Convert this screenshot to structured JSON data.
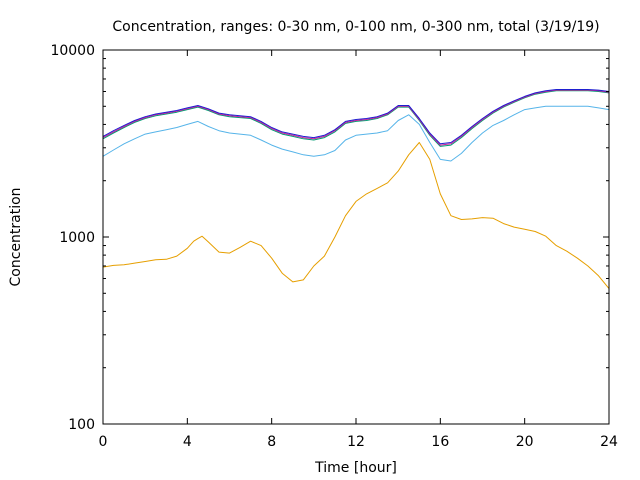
{
  "chart_data": {
    "type": "line",
    "title": "Concentration, ranges: 0-30 nm, 0-100 nm, 0-300 nm, total (3/19/19)",
    "xlabel": "Time [hour]",
    "ylabel": "Concentration",
    "xlim": [
      0,
      24
    ],
    "ylim": [
      100,
      10000
    ],
    "yscale": "log",
    "grid": false,
    "x_ticks": [
      0,
      4,
      8,
      12,
      16,
      20,
      24
    ],
    "x_tick_labels": [
      "0",
      "4",
      "8",
      "12",
      "16",
      "20",
      "24"
    ],
    "y_ticks": [
      100,
      1000,
      10000
    ],
    "y_tick_labels": [
      "100",
      "1000",
      "10000"
    ],
    "series": [
      {
        "color": "#e69f00",
        "x": [
          0,
          0.5,
          1,
          1.5,
          2,
          2.5,
          3,
          3.5,
          4,
          4.3,
          4.5,
          4.7,
          5,
          5.5,
          6,
          6.5,
          7,
          7.5,
          8,
          8.5,
          9,
          9.5,
          10,
          10.5,
          11,
          11.5,
          12,
          12.5,
          13,
          13.5,
          14,
          14.5,
          15,
          15.5,
          16,
          16.5,
          17,
          17.5,
          18,
          18.5,
          19,
          19.5,
          20,
          20.5,
          21,
          21.5,
          22,
          22.5,
          23,
          23.5,
          24
        ],
        "values": [
          690,
          705,
          710,
          725,
          740,
          755,
          760,
          790,
          870,
          950,
          980,
          1010,
          940,
          830,
          820,
          880,
          950,
          900,
          770,
          640,
          575,
          590,
          700,
          790,
          1000,
          1300,
          1550,
          1700,
          1820,
          1950,
          2250,
          2750,
          3200,
          2600,
          1700,
          1300,
          1240,
          1250,
          1270,
          1260,
          1180,
          1130,
          1100,
          1070,
          1010,
          900,
          840,
          770,
          700,
          620,
          530
        ]
      },
      {
        "color": "#56b4e9",
        "x": [
          0,
          0.5,
          1,
          1.5,
          2,
          2.5,
          3,
          3.5,
          4,
          4.5,
          5,
          5.5,
          6,
          6.5,
          7,
          7.5,
          8,
          8.5,
          9,
          9.5,
          10,
          10.5,
          11,
          11.5,
          12,
          12.5,
          13,
          13.5,
          14,
          14.5,
          15,
          15.5,
          16,
          16.5,
          17,
          17.5,
          18,
          18.5,
          19,
          19.5,
          20,
          20.5,
          21,
          21.5,
          22,
          22.5,
          23,
          23.5,
          24
        ],
        "values": [
          2700,
          2920,
          3150,
          3350,
          3550,
          3650,
          3750,
          3850,
          4000,
          4150,
          3900,
          3700,
          3600,
          3550,
          3500,
          3300,
          3100,
          2950,
          2850,
          2750,
          2700,
          2750,
          2900,
          3300,
          3500,
          3550,
          3600,
          3700,
          4200,
          4500,
          4000,
          3200,
          2600,
          2550,
          2800,
          3200,
          3600,
          3950,
          4200,
          4500,
          4800,
          4900,
          5000,
          5000,
          5000,
          5000,
          5000,
          4900,
          4800
        ]
      },
      {
        "color": "#009e73",
        "x": [
          0,
          0.5,
          1,
          1.5,
          2,
          2.5,
          3,
          3.5,
          4,
          4.5,
          5,
          5.5,
          6,
          6.5,
          7,
          7.5,
          8,
          8.5,
          9,
          9.5,
          10,
          10.5,
          11,
          11.5,
          12,
          12.5,
          13,
          13.5,
          14,
          14.5,
          15,
          15.5,
          16,
          16.5,
          17,
          17.5,
          18,
          18.5,
          19,
          19.5,
          20,
          20.5,
          21,
          21.5,
          22,
          22.5,
          23,
          23.5,
          24
        ],
        "values": [
          3350,
          3600,
          3850,
          4100,
          4300,
          4450,
          4550,
          4650,
          4800,
          4950,
          4750,
          4500,
          4400,
          4350,
          4300,
          4050,
          3750,
          3550,
          3450,
          3350,
          3300,
          3400,
          3650,
          4050,
          4150,
          4200,
          4300,
          4500,
          4950,
          4950,
          4200,
          3500,
          3050,
          3100,
          3400,
          3800,
          4200,
          4600,
          4950,
          5250,
          5550,
          5800,
          5950,
          6050,
          6050,
          6050,
          6050,
          6000,
          5900
        ]
      },
      {
        "color": "#c8209a",
        "x": [
          0,
          0.5,
          1,
          1.5,
          2,
          2.5,
          3,
          3.5,
          4,
          4.5,
          5,
          5.5,
          6,
          6.5,
          7,
          7.5,
          8,
          8.5,
          9,
          9.5,
          10,
          10.5,
          11,
          11.5,
          12,
          12.5,
          13,
          13.5,
          14,
          14.5,
          15,
          15.5,
          16,
          16.5,
          17,
          17.5,
          18,
          18.5,
          19,
          19.5,
          20,
          20.5,
          21,
          21.5,
          22,
          22.5,
          23,
          23.5,
          24
        ],
        "values": [
          3400,
          3650,
          3900,
          4150,
          4350,
          4500,
          4600,
          4700,
          4850,
          5000,
          4800,
          4550,
          4450,
          4400,
          4350,
          4100,
          3800,
          3600,
          3500,
          3400,
          3350,
          3450,
          3700,
          4100,
          4200,
          4250,
          4350,
          4550,
          5000,
          5000,
          4250,
          3550,
          3100,
          3150,
          3450,
          3850,
          4250,
          4650,
          5000,
          5300,
          5600,
          5850,
          6000,
          6100,
          6100,
          6100,
          6100,
          6050,
          5950
        ]
      },
      {
        "color": "#1f1fd0",
        "x": [
          0,
          0.5,
          1,
          1.5,
          2,
          2.5,
          3,
          3.5,
          4,
          4.5,
          5,
          5.5,
          6,
          6.5,
          7,
          7.5,
          8,
          8.5,
          9,
          9.5,
          10,
          10.5,
          11,
          11.5,
          12,
          12.5,
          13,
          13.5,
          14,
          14.5,
          15,
          15.5,
          16,
          16.5,
          17,
          17.5,
          18,
          18.5,
          19,
          19.5,
          20,
          20.5,
          21,
          21.5,
          22,
          22.5,
          23,
          23.5,
          24
        ],
        "values": [
          3450,
          3700,
          3950,
          4200,
          4400,
          4550,
          4650,
          4750,
          4900,
          5050,
          4850,
          4600,
          4500,
          4450,
          4400,
          4150,
          3850,
          3650,
          3550,
          3450,
          3400,
          3500,
          3750,
          4150,
          4250,
          4300,
          4400,
          4600,
          5050,
          5050,
          4300,
          3600,
          3150,
          3200,
          3500,
          3900,
          4300,
          4700,
          5050,
          5350,
          5650,
          5900,
          6050,
          6150,
          6150,
          6150,
          6150,
          6100,
          6000
        ]
      }
    ]
  }
}
